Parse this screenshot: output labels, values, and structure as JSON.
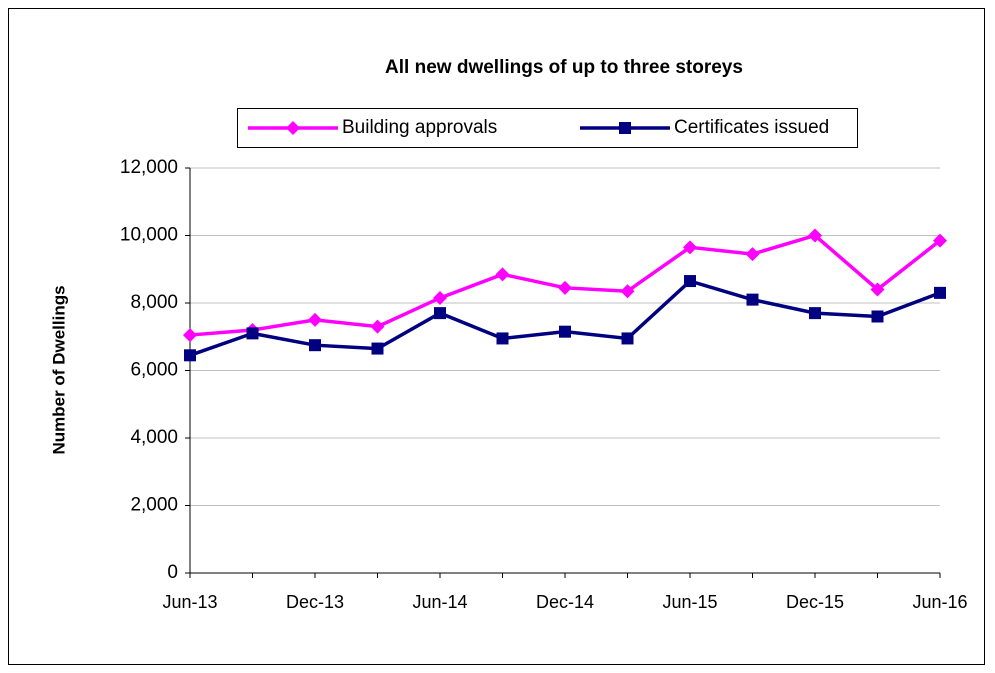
{
  "chart_data": {
    "type": "line",
    "title": "All new dwellings of up to three storeys",
    "y_label": "Number of Dwellings",
    "categories": [
      "Jun-13",
      null,
      "Dec-13",
      null,
      "Jun-14",
      null,
      "Dec-14",
      null,
      "Jun-15",
      null,
      "Dec-15",
      null,
      "Jun-16"
    ],
    "series": [
      {
        "name": "Building approvals",
        "color": "#ff00ff",
        "marker": "diamond",
        "values": [
          7050,
          7200,
          7500,
          7300,
          8150,
          8850,
          8450,
          8350,
          9650,
          9450,
          10000,
          8400,
          9850
        ]
      },
      {
        "name": "Certificates issued",
        "color": "#000080",
        "marker": "square",
        "values": [
          6450,
          7100,
          6750,
          6650,
          7700,
          6950,
          7150,
          6950,
          8650,
          8100,
          7700,
          7600,
          8300
        ]
      }
    ],
    "ylim": [
      0,
      12000
    ],
    "yticks": [
      0,
      {
        "value": 2000,
        "label": "2,000"
      },
      {
        "value": 4000,
        "label": "4,000"
      },
      {
        "value": 6000,
        "label": "6,000"
      },
      {
        "value": 8000,
        "label": "8,000"
      },
      {
        "value": 10000,
        "label": "10,000"
      },
      {
        "value": 12000,
        "label": "12,000"
      }
    ],
    "grid": true,
    "legend": "top"
  }
}
